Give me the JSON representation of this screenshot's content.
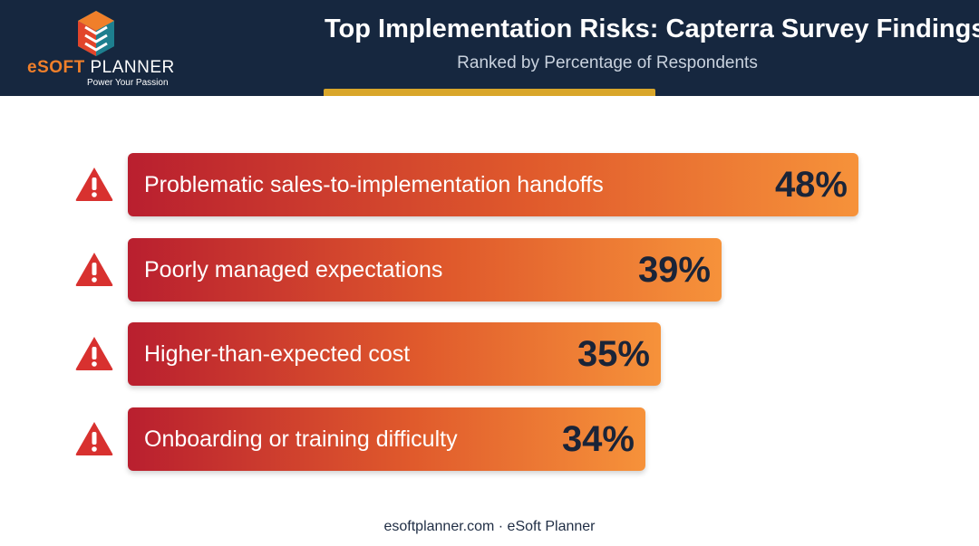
{
  "header": {
    "title": "Top Implementation Risks: Capterra Survey Findings",
    "subtitle": "Ranked by Percentage of Respondents"
  },
  "logo": {
    "name_prefix": "eSOFT",
    "name_suffix": " PLANNER",
    "tagline": "Power Your Passion"
  },
  "colors": {
    "header_bg": "#16273f",
    "accent": "#d9a62a",
    "bar_start": "#b91f2f",
    "bar_end": "#f6923a",
    "warning": "#d8312f",
    "value_text": "#1a2438"
  },
  "chart_data": {
    "type": "bar",
    "orientation": "horizontal",
    "categories": [
      "Problematic sales-to-implementation handoffs",
      "Poorly managed expectations",
      "Higher-than-expected cost",
      "Onboarding or training difficulty"
    ],
    "values": [
      48,
      39,
      35,
      34
    ],
    "value_labels": [
      "48%",
      "39%",
      "35%",
      "34%"
    ],
    "xlim": [
      0,
      100
    ],
    "grid": false,
    "icon": "warning-icon"
  },
  "footer": {
    "text": "esoftplanner.com · eSoft Planner"
  }
}
